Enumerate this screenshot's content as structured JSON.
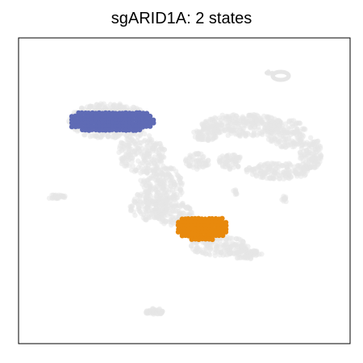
{
  "chart_data": {
    "type": "scatter",
    "title": "sgARID1A: 2 states",
    "xlabel": "",
    "ylabel": "",
    "axes_ticks": false,
    "grid": false,
    "legend": "none",
    "background_cells": {
      "color": "#e6e6e6",
      "description_regions": [
        {
          "name": "upper-left-cluster",
          "centroid": [
            138,
            150
          ]
        },
        {
          "name": "center-stem",
          "centroid": [
            205,
            225
          ]
        },
        {
          "name": "right-ring",
          "centroid": [
            330,
            180
          ]
        },
        {
          "name": "upper-right-small",
          "centroid": [
            348,
            94
          ]
        },
        {
          "name": "lower-center-cluster",
          "centroid": [
            270,
            300
          ]
        },
        {
          "name": "left-island",
          "centroid": [
            70,
            244
          ]
        },
        {
          "name": "bottom-island",
          "centroid": [
            192,
            386
          ]
        }
      ]
    },
    "series": [
      {
        "name": "",
        "color": "#5f6bb5",
        "region": {
          "cx": 138,
          "cy": 150,
          "rx": 53,
          "ry": 14
        }
      },
      {
        "name": "",
        "color": "#e8890c",
        "region": {
          "cx": 250,
          "cy": 282,
          "rx": 33,
          "ry": 15
        }
      }
    ]
  }
}
